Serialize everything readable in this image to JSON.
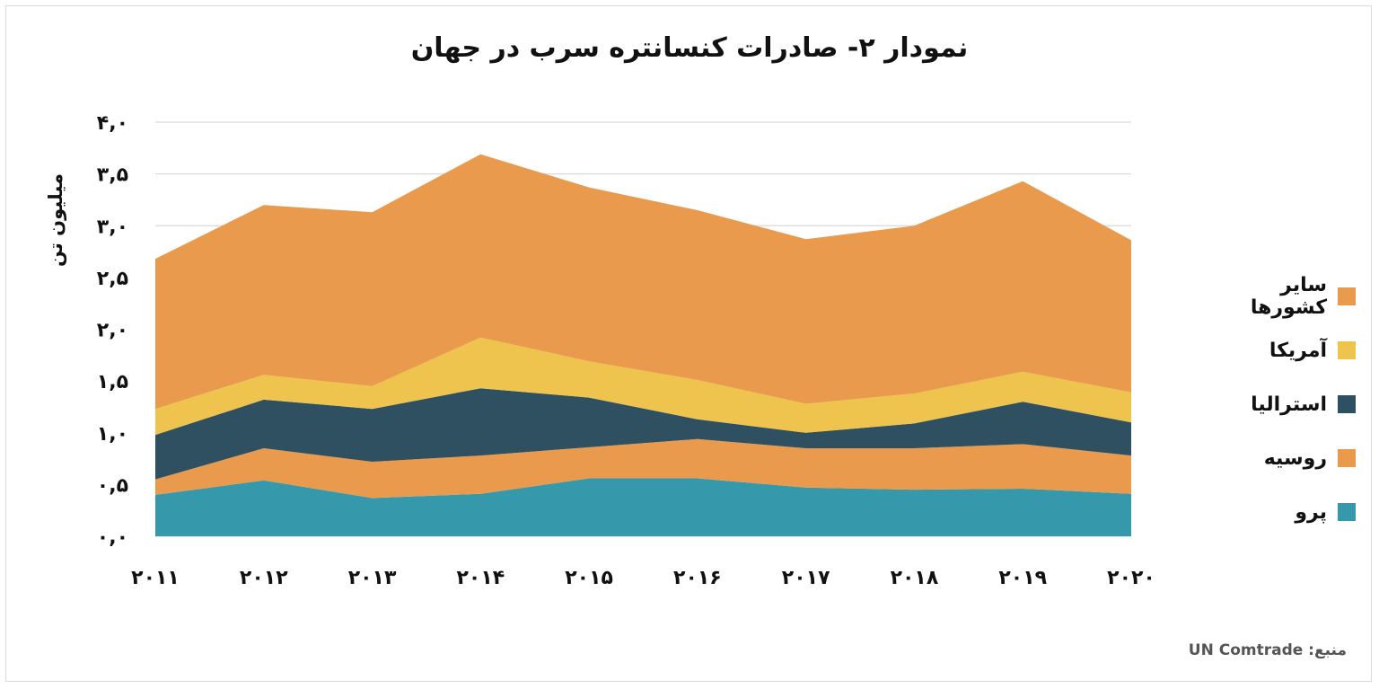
{
  "chart_data": {
    "type": "area",
    "stacked": true,
    "title": "نمودار ۲- صادرات کنسانتره سرب در جهان",
    "ylabel": "میلیون تن",
    "xlabel": "",
    "x": [
      "۲۰۱۱",
      "۲۰۱۲",
      "۲۰۱۳",
      "۲۰۱۴",
      "۲۰۱۵",
      "۲۰۱۶",
      "۲۰۱۷",
      "۲۰۱۸",
      "۲۰۱۹",
      "۲۰۲۰"
    ],
    "ylim": [
      0,
      4
    ],
    "yticks": [
      0,
      0.5,
      1,
      1.5,
      2,
      2.5,
      3,
      3.5,
      4
    ],
    "ytick_labels": [
      "۰,۰",
      "۰,۵",
      "۱,۰",
      "۱,۵",
      "۲,۰",
      "۲,۵",
      "۳,۰",
      "۳,۵",
      "۴,۰"
    ],
    "grid": true,
    "legend_position": "right",
    "series": [
      {
        "name": "پرو",
        "color": "#3699ab",
        "values": [
          0.4,
          0.54,
          0.37,
          0.41,
          0.56,
          0.56,
          0.47,
          0.45,
          0.46,
          0.41
        ]
      },
      {
        "name": "روسیه",
        "color": "#e99a4c",
        "values": [
          0.15,
          0.31,
          0.35,
          0.37,
          0.3,
          0.38,
          0.38,
          0.4,
          0.43,
          0.37
        ]
      },
      {
        "name": "استرالیا",
        "color": "#2f5060",
        "values": [
          0.43,
          0.47,
          0.51,
          0.65,
          0.48,
          0.19,
          0.15,
          0.24,
          0.41,
          0.32
        ]
      },
      {
        "name": "آمریکا",
        "color": "#eec44e",
        "values": [
          0.25,
          0.24,
          0.22,
          0.49,
          0.35,
          0.38,
          0.28,
          0.29,
          0.29,
          0.29
        ]
      },
      {
        "name": "سایر کشورها",
        "color": "#e99a4c",
        "values": [
          1.45,
          1.64,
          1.68,
          1.77,
          1.68,
          1.64,
          1.59,
          1.62,
          1.84,
          1.47
        ]
      }
    ]
  },
  "source": "منبع: UN Comtrade"
}
